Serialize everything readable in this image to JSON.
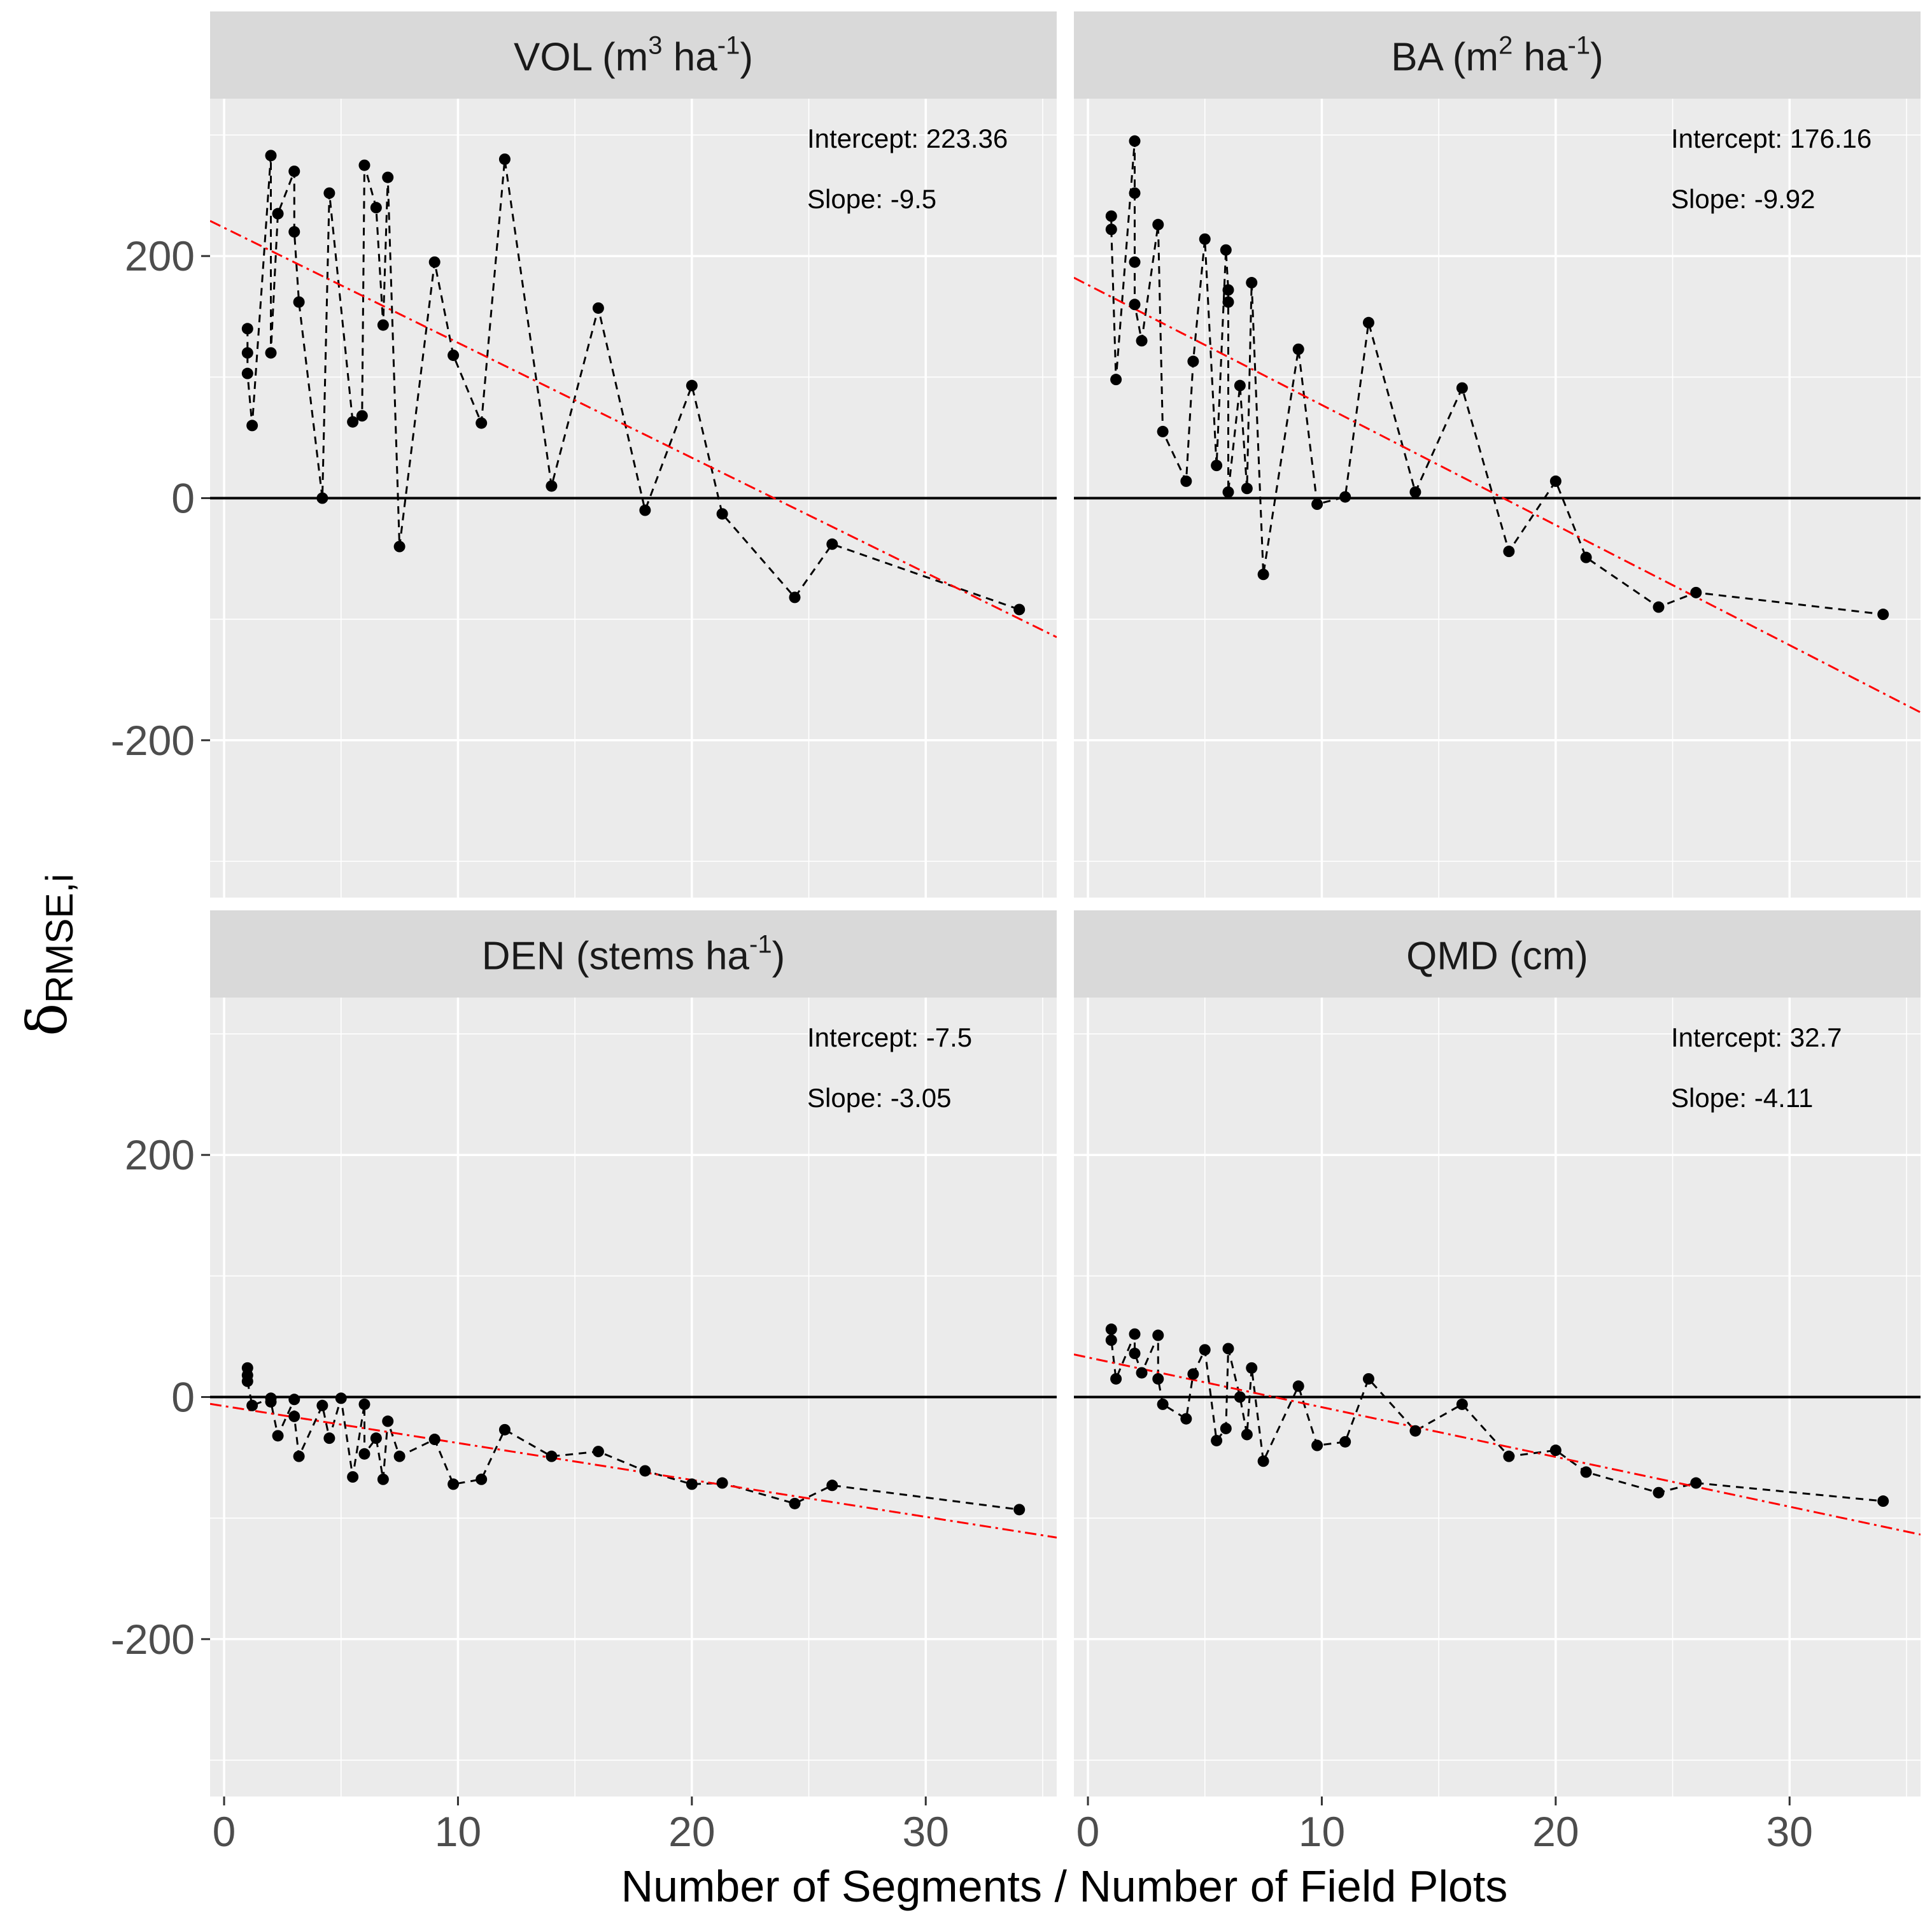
{
  "chart_data": [
    {
      "type": "scatter",
      "panel": "VOL",
      "title": {
        "main": "VOL (m",
        "sup1": "3",
        "mid": " ha",
        "sup2": "-1",
        "end": ")"
      },
      "intercept_label": "Intercept: 223.36",
      "slope_label": "Slope: -9.5",
      "intercept": 223.36,
      "slope": -9.5,
      "x": [
        1,
        1,
        1,
        1.2,
        2,
        2,
        2.3,
        3,
        3,
        3.2,
        4.2,
        4.5,
        5.5,
        5.9,
        6,
        6.5,
        6.8,
        7,
        7.5,
        9,
        9.8,
        11,
        12,
        14,
        16,
        18,
        20,
        21.3,
        24.4,
        26,
        34
      ],
      "y": [
        140,
        120,
        103,
        60,
        283,
        120,
        235,
        270,
        220,
        162,
        0,
        252,
        63,
        68,
        275,
        240,
        143,
        265,
        -40,
        195,
        118,
        62,
        280,
        10,
        157,
        -10,
        93,
        -13,
        -82,
        -38,
        -92
      ]
    },
    {
      "type": "scatter",
      "panel": "BA",
      "title": {
        "main": "BA (m",
        "sup1": "2",
        "mid": " ha",
        "sup2": "-1",
        "end": ")"
      },
      "intercept_label": "Intercept: 176.16",
      "slope_label": "Slope: -9.92",
      "intercept": 176.16,
      "slope": -9.92,
      "x": [
        1,
        1,
        1.2,
        2,
        2,
        2,
        2,
        2.3,
        3,
        3.2,
        4.2,
        4.5,
        5,
        5.5,
        5.9,
        6,
        6,
        6,
        6.5,
        6.8,
        7,
        7.5,
        9,
        9.8,
        11,
        12,
        14,
        16,
        18,
        20,
        21.3,
        24.4,
        26,
        34
      ],
      "y": [
        233,
        222,
        98,
        295,
        252,
        195,
        160,
        130,
        226,
        55,
        14,
        113,
        214,
        27,
        205,
        172,
        162,
        5,
        93,
        8,
        178,
        -63,
        123,
        -5,
        1,
        145,
        5,
        91,
        -44,
        14,
        -49,
        -90,
        -78,
        -96
      ]
    },
    {
      "type": "scatter",
      "panel": "DEN",
      "title": {
        "main": "DEN (stems ha",
        "sup1": "",
        "mid": "",
        "sup2": "-1",
        "end": ")"
      },
      "intercept_label": "Intercept: -7.5",
      "slope_label": "Slope: -3.05",
      "intercept": -7.5,
      "slope": -3.05,
      "x": [
        1,
        1,
        1,
        1.2,
        2,
        2,
        2.3,
        3,
        3,
        3.2,
        4.2,
        4.5,
        5,
        5.5,
        6,
        6,
        6.5,
        6.8,
        7,
        7.5,
        9,
        9.8,
        11,
        12,
        14,
        16,
        18,
        20,
        21.3,
        24.4,
        26,
        34
      ],
      "y": [
        24,
        18,
        13,
        -7,
        -1,
        -4,
        -32,
        -2,
        -16,
        -49,
        -7,
        -34,
        -1,
        -66,
        -6,
        -47,
        -34,
        -68,
        -20,
        -49,
        -35,
        -72,
        -68,
        -27,
        -49,
        -45,
        -61,
        -72,
        -71,
        -88,
        -73,
        -93
      ]
    },
    {
      "type": "scatter",
      "panel": "QMD",
      "title": {
        "main": "QMD (cm)",
        "sup1": "",
        "mid": "",
        "sup2": "",
        "end": ""
      },
      "intercept_label": "Intercept: 32.7",
      "slope_label": "Slope: -4.11",
      "intercept": 32.7,
      "slope": -4.11,
      "x": [
        1,
        1,
        1.2,
        2,
        2,
        2.3,
        3,
        3,
        3.2,
        4.2,
        4.5,
        5,
        5.5,
        5.9,
        6,
        6.5,
        6.8,
        7,
        7.5,
        9,
        9.8,
        11,
        12,
        14,
        16,
        18,
        20,
        21.3,
        24.4,
        26,
        34
      ],
      "y": [
        56,
        47,
        15,
        52,
        36,
        20,
        51,
        15,
        -6,
        -18,
        19,
        39,
        -36,
        -26,
        40,
        0,
        -31,
        24,
        -53,
        9,
        -40,
        -37,
        15,
        -28,
        -6,
        -49,
        -44,
        -62,
        -79,
        -71,
        -86
      ]
    }
  ],
  "axes": {
    "xlim": [
      -0.6,
      35.6
    ],
    "ylim": [
      -330,
      330
    ],
    "x_ticks": [
      0,
      10,
      20,
      30
    ],
    "x_tick_labels": [
      "0",
      "10",
      "20",
      "30"
    ],
    "y_ticks": [
      -200,
      0,
      200
    ],
    "y_tick_labels": [
      "-200",
      "0",
      "200"
    ],
    "x_minor": [
      5,
      15,
      25,
      35
    ],
    "y_minor": [
      -300,
      -100,
      100,
      300
    ]
  },
  "xlabel": "Number of Segments / Number of Field Plots",
  "ylabel": {
    "symbol": "δ",
    "subscript": "RMSE,i"
  },
  "colors": {
    "panel_bg": "#ebebeb",
    "strip_bg": "#d9d9d9",
    "grid": "#ffffff",
    "points": "#000000",
    "connect_line": "#000000",
    "fit_line": "#ff0000",
    "zero_line": "#000000"
  }
}
